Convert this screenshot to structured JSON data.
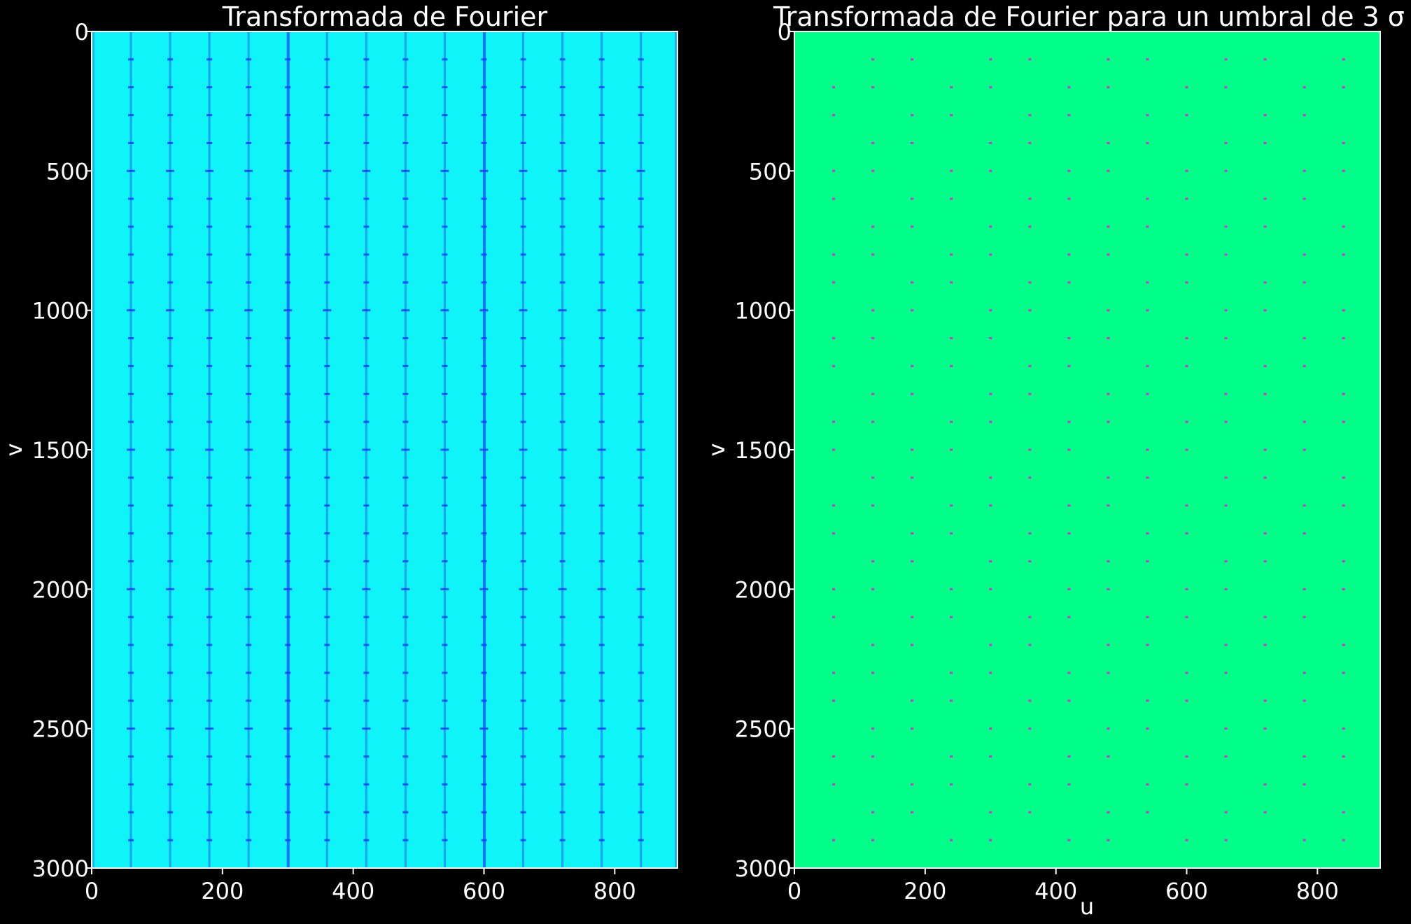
{
  "chart_data": [
    {
      "type": "heatmap",
      "title": "Transformada de Fourier",
      "xlabel": "",
      "ylabel": "v",
      "xlim": [
        0,
        896
      ],
      "ylim": [
        3000,
        0
      ],
      "xticks": [
        "0",
        "200",
        "400",
        "600",
        "800"
      ],
      "xtick_values": [
        0,
        200,
        400,
        600,
        800
      ],
      "yticks": [
        "0",
        "500",
        "1000",
        "1500",
        "2000",
        "2500",
        "3000"
      ],
      "ytick_values": [
        0,
        500,
        1000,
        1500,
        2000,
        2500,
        3000
      ],
      "colors": {
        "background": "#0ff4f8",
        "feature": "#1e3cff"
      },
      "feature_columns_u": [
        60,
        120,
        180,
        240,
        300,
        360,
        420,
        480,
        540,
        600,
        660,
        720,
        780,
        840
      ],
      "strong_columns_u": [
        300,
        600
      ],
      "feature_rows_v": [
        100,
        200,
        300,
        400,
        500,
        600,
        700,
        800,
        900,
        1000,
        1100,
        1200,
        1300,
        1400,
        1500,
        1600,
        1700,
        1800,
        1900,
        2000,
        2100,
        2200,
        2300,
        2400,
        2500,
        2600,
        2700,
        2800,
        2900
      ]
    },
    {
      "type": "heatmap",
      "title": "Transformada de Fourier para un umbral de 3 σ",
      "xlabel": "u",
      "ylabel": "v",
      "xlim": [
        0,
        896
      ],
      "ylim": [
        3000,
        0
      ],
      "xticks": [
        "0",
        "200",
        "400",
        "600",
        "800"
      ],
      "xtick_values": [
        0,
        200,
        400,
        600,
        800
      ],
      "yticks": [
        "0",
        "500",
        "1000",
        "1500",
        "2000",
        "2500",
        "3000"
      ],
      "ytick_values": [
        0,
        500,
        1000,
        1500,
        2000,
        2500,
        3000
      ],
      "colors": {
        "background": "#00ff88",
        "feature": "#e22bd0"
      },
      "feature_columns_u": [
        60,
        120,
        180,
        240,
        300,
        360,
        420,
        480,
        540,
        600,
        660,
        720,
        780,
        840
      ],
      "feature_rows_v": [
        100,
        200,
        300,
        400,
        500,
        600,
        700,
        800,
        900,
        1000,
        1100,
        1200,
        1300,
        1400,
        1500,
        1600,
        1700,
        1800,
        1900,
        2000,
        2100,
        2200,
        2300,
        2400,
        2500,
        2600,
        2700,
        2800,
        2900
      ]
    }
  ]
}
